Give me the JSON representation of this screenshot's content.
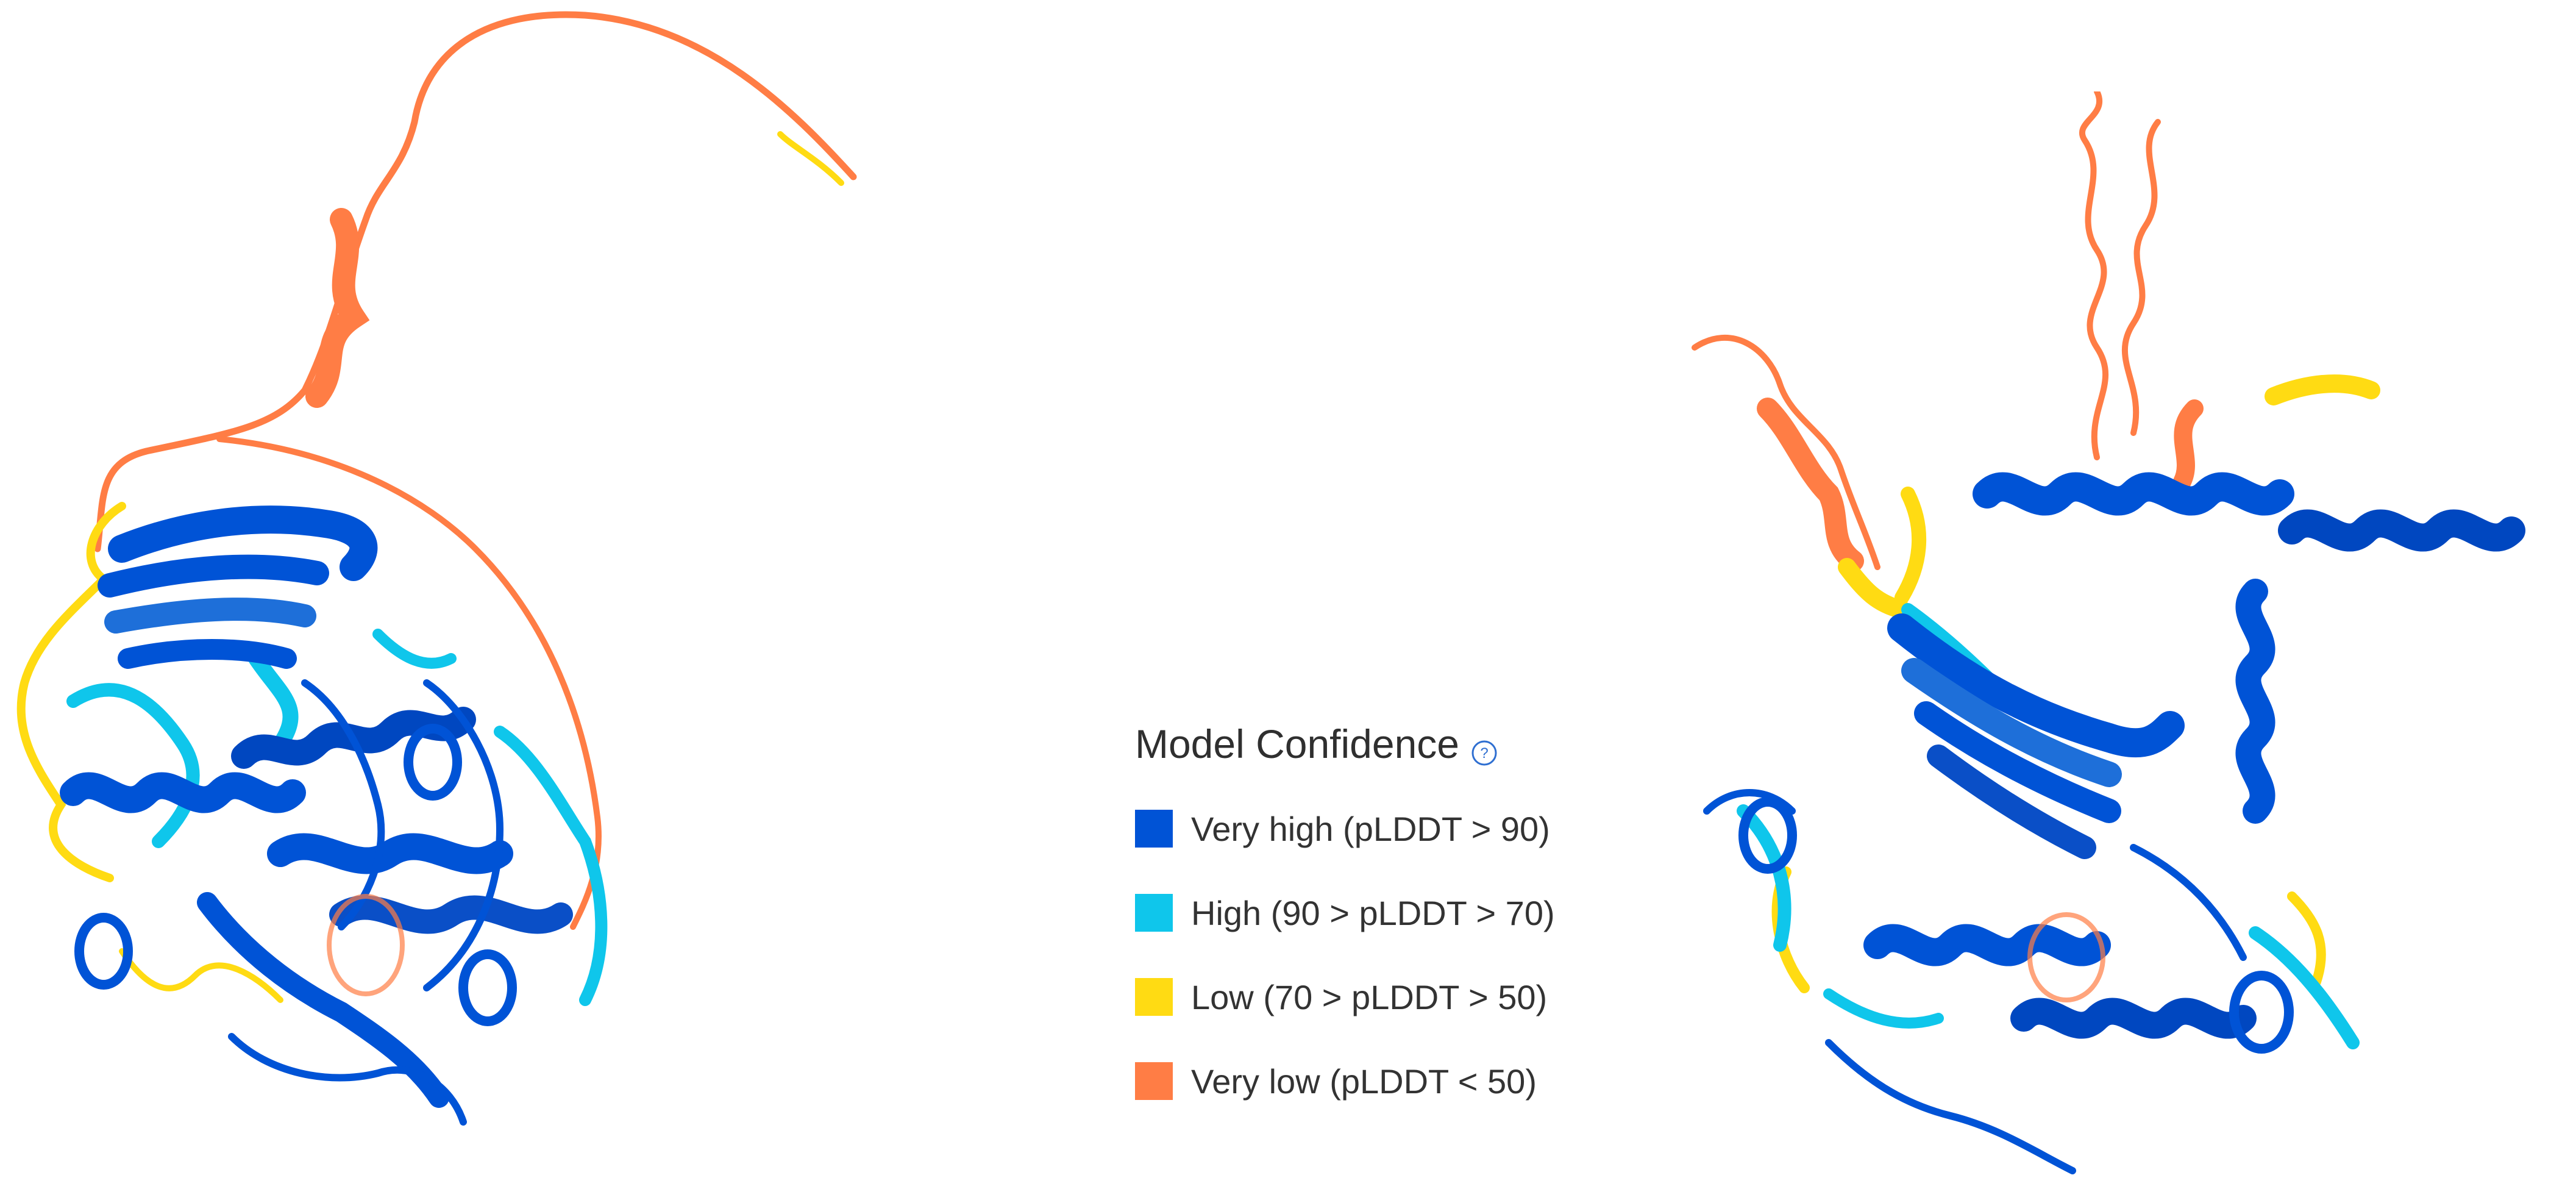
{
  "legend": {
    "title": "Model Confidence",
    "help_icon": "help-circle-icon",
    "items": [
      {
        "label": "Very high (pLDDT > 90)",
        "color": "#0053D6"
      },
      {
        "label": "High (90 > pLDDT > 70)",
        "color": "#0FC6EB"
      },
      {
        "label": "Low (70 > pLDDT > 50)",
        "color": "#FFDB13"
      },
      {
        "label": "Very low (pLDDT < 50)",
        "color": "#FF7D45"
      }
    ]
  }
}
